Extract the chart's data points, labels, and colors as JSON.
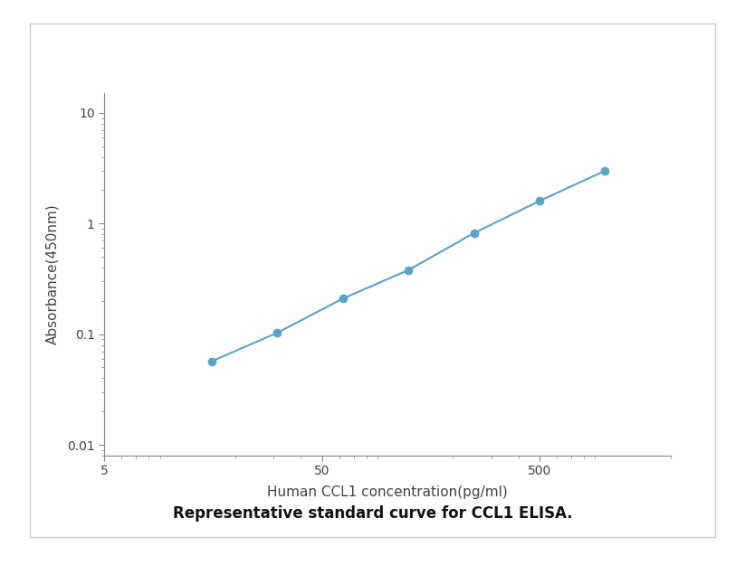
{
  "x_values": [
    15.6,
    31.2,
    62.5,
    125,
    250,
    500,
    1000
  ],
  "y_values": [
    0.057,
    0.103,
    0.21,
    0.38,
    0.82,
    1.6,
    3.0
  ],
  "line_color": "#5BA3C9",
  "marker_color": "#5BA3C9",
  "marker_size": 6,
  "line_width": 1.5,
  "xlabel": "Human CCL1 concentration(pg/ml)",
  "ylabel": "Absorbance(450nm)",
  "xlim_low": 5,
  "xlim_high": 2000,
  "ylim_low": 0.008,
  "ylim_high": 15,
  "xticks": [
    5,
    50,
    500
  ],
  "yticks": [
    0.01,
    0.1,
    1,
    10
  ],
  "caption": "Representative standard curve for CCL1 ELISA.",
  "caption_fontsize": 12,
  "xlabel_fontsize": 11,
  "ylabel_fontsize": 11,
  "tick_fontsize": 10,
  "background_color": "#ffffff",
  "frame_color": "#cccccc",
  "tick_color": "#888888",
  "label_color": "#444444",
  "caption_color": "#111111"
}
